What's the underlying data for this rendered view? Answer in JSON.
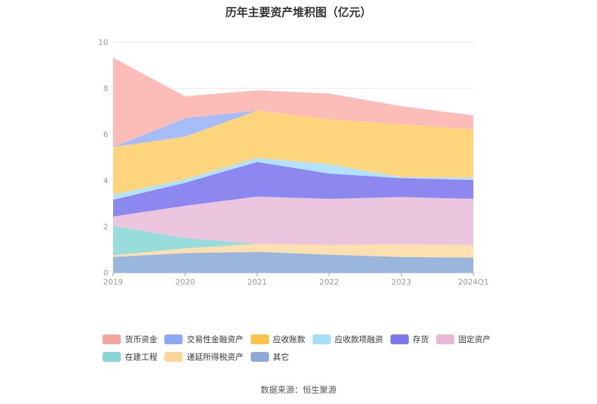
{
  "chart_data": {
    "type": "area",
    "title": "历年主要资产堆积图（亿元）",
    "source": "数据来源：恒生聚源",
    "categories": [
      "2019",
      "2020",
      "2021",
      "2022",
      "2023",
      "2024Q1"
    ],
    "ylim": [
      0,
      10
    ],
    "yticks": [
      "0",
      "2",
      "4",
      "6",
      "8",
      "10"
    ],
    "stacked": true,
    "grid": true,
    "legend_position": "bottom",
    "series": [
      {
        "name": "其它",
        "color": "#9ab6dc",
        "values": [
          0.68,
          0.85,
          0.9,
          0.78,
          0.68,
          0.65
        ]
      },
      {
        "name": "递延所得税资产",
        "color": "#fddfb0",
        "values": [
          0.07,
          0.2,
          0.35,
          0.42,
          0.55,
          0.55
        ]
      },
      {
        "name": "在建工程",
        "color": "#99dcdc",
        "values": [
          1.28,
          0.45,
          0.0,
          0.0,
          0.0,
          0.0
        ]
      },
      {
        "name": "固定资产",
        "color": "#ecc6df",
        "values": [
          0.4,
          1.4,
          2.05,
          2.0,
          2.05,
          2.0
        ]
      },
      {
        "name": "存货",
        "color": "#8c88f0",
        "values": [
          0.73,
          1.0,
          1.5,
          1.1,
          0.82,
          0.82
        ]
      },
      {
        "name": "应收款项融资",
        "color": "#b2e2fb",
        "values": [
          0.22,
          0.15,
          0.18,
          0.4,
          0.05,
          0.1
        ]
      },
      {
        "name": "应收账款",
        "color": "#fed47c",
        "values": [
          2.07,
          1.85,
          2.05,
          1.95,
          2.28,
          2.1
        ]
      },
      {
        "name": "交易性金融资产",
        "color": "#a6bdf9",
        "values": [
          0.0,
          0.8,
          0.0,
          0.0,
          0.0,
          0.0
        ]
      },
      {
        "name": "货币资金",
        "color": "#fcbcb7",
        "values": [
          3.88,
          0.95,
          0.88,
          1.12,
          0.79,
          0.6
        ]
      }
    ]
  },
  "legend": {
    "row1": [
      {
        "label": "货币资金",
        "color": "#f5a79f"
      },
      {
        "label": "交易性金融资产",
        "color": "#8ea9f5"
      },
      {
        "label": "应收账款",
        "color": "#fdc24a"
      },
      {
        "label": "应收款项融资",
        "color": "#a7dffa"
      },
      {
        "label": "存货",
        "color": "#7b77ec"
      },
      {
        "label": "固定资产",
        "color": "#e8b7d6"
      }
    ],
    "row2": [
      {
        "label": "在建工程",
        "color": "#86d6d6"
      },
      {
        "label": "递延所得税资产",
        "color": "#fdd69c"
      },
      {
        "label": "其它",
        "color": "#8eaad8"
      }
    ]
  }
}
